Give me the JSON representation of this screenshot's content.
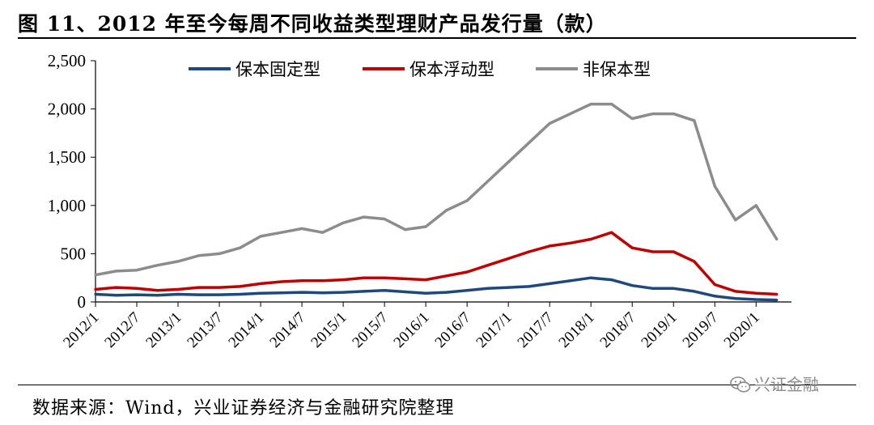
{
  "title": "图 11、2012 年至今每周不同收益类型理财产品发行量（款）",
  "source": "数据来源：Wind，兴业证券经济与金融研究院整理",
  "watermark": "兴证金融",
  "colors": {
    "保本固定型": "#1F497D",
    "保本浮动型": "#C00000",
    "非保本型": "#8C8C8C"
  },
  "chart_data": {
    "type": "line",
    "title": "",
    "xlabel": "",
    "ylabel": "",
    "ylim": [
      0,
      2500
    ],
    "yticks": [
      "0",
      "500",
      "1,000",
      "1,500",
      "2,000",
      "2,500"
    ],
    "xticks": [
      "2012/1",
      "2012/7",
      "2013/1",
      "2013/7",
      "2014/1",
      "2014/7",
      "2015/1",
      "2015/7",
      "2016/1",
      "2016/7",
      "2017/1",
      "2017/7",
      "2018/1",
      "2018/7",
      "2019/1",
      "2019/7",
      "2020/1"
    ],
    "x": [
      "2012/1",
      "2012/4",
      "2012/7",
      "2012/10",
      "2013/1",
      "2013/4",
      "2013/7",
      "2013/10",
      "2014/1",
      "2014/4",
      "2014/7",
      "2014/10",
      "2015/1",
      "2015/4",
      "2015/7",
      "2015/10",
      "2016/1",
      "2016/4",
      "2016/7",
      "2016/10",
      "2017/1",
      "2017/4",
      "2017/7",
      "2017/10",
      "2018/1",
      "2018/4",
      "2018/7",
      "2018/10",
      "2019/1",
      "2019/4",
      "2019/7",
      "2019/10",
      "2020/1",
      "2020/4"
    ],
    "series": [
      {
        "name": "保本固定型",
        "color": "#1F497D",
        "values": [
          80,
          70,
          75,
          70,
          80,
          75,
          75,
          80,
          90,
          95,
          100,
          95,
          100,
          110,
          120,
          105,
          90,
          100,
          120,
          140,
          150,
          160,
          190,
          220,
          250,
          230,
          170,
          140,
          140,
          110,
          60,
          35,
          25,
          20
        ]
      },
      {
        "name": "保本浮动型",
        "color": "#C00000",
        "values": [
          130,
          150,
          140,
          120,
          130,
          150,
          150,
          160,
          190,
          210,
          220,
          220,
          230,
          250,
          250,
          240,
          230,
          270,
          310,
          380,
          450,
          520,
          580,
          610,
          650,
          720,
          560,
          520,
          520,
          420,
          180,
          110,
          90,
          80
        ]
      },
      {
        "name": "非保本型",
        "color": "#8C8C8C",
        "values": [
          280,
          320,
          330,
          380,
          420,
          480,
          500,
          560,
          680,
          720,
          760,
          720,
          820,
          880,
          860,
          750,
          780,
          950,
          1050,
          1250,
          1450,
          1650,
          1850,
          1950,
          2050,
          2050,
          1900,
          1950,
          1950,
          1880,
          1200,
          850,
          1000,
          650
        ]
      }
    ],
    "legend": "top-center",
    "grid": false
  }
}
